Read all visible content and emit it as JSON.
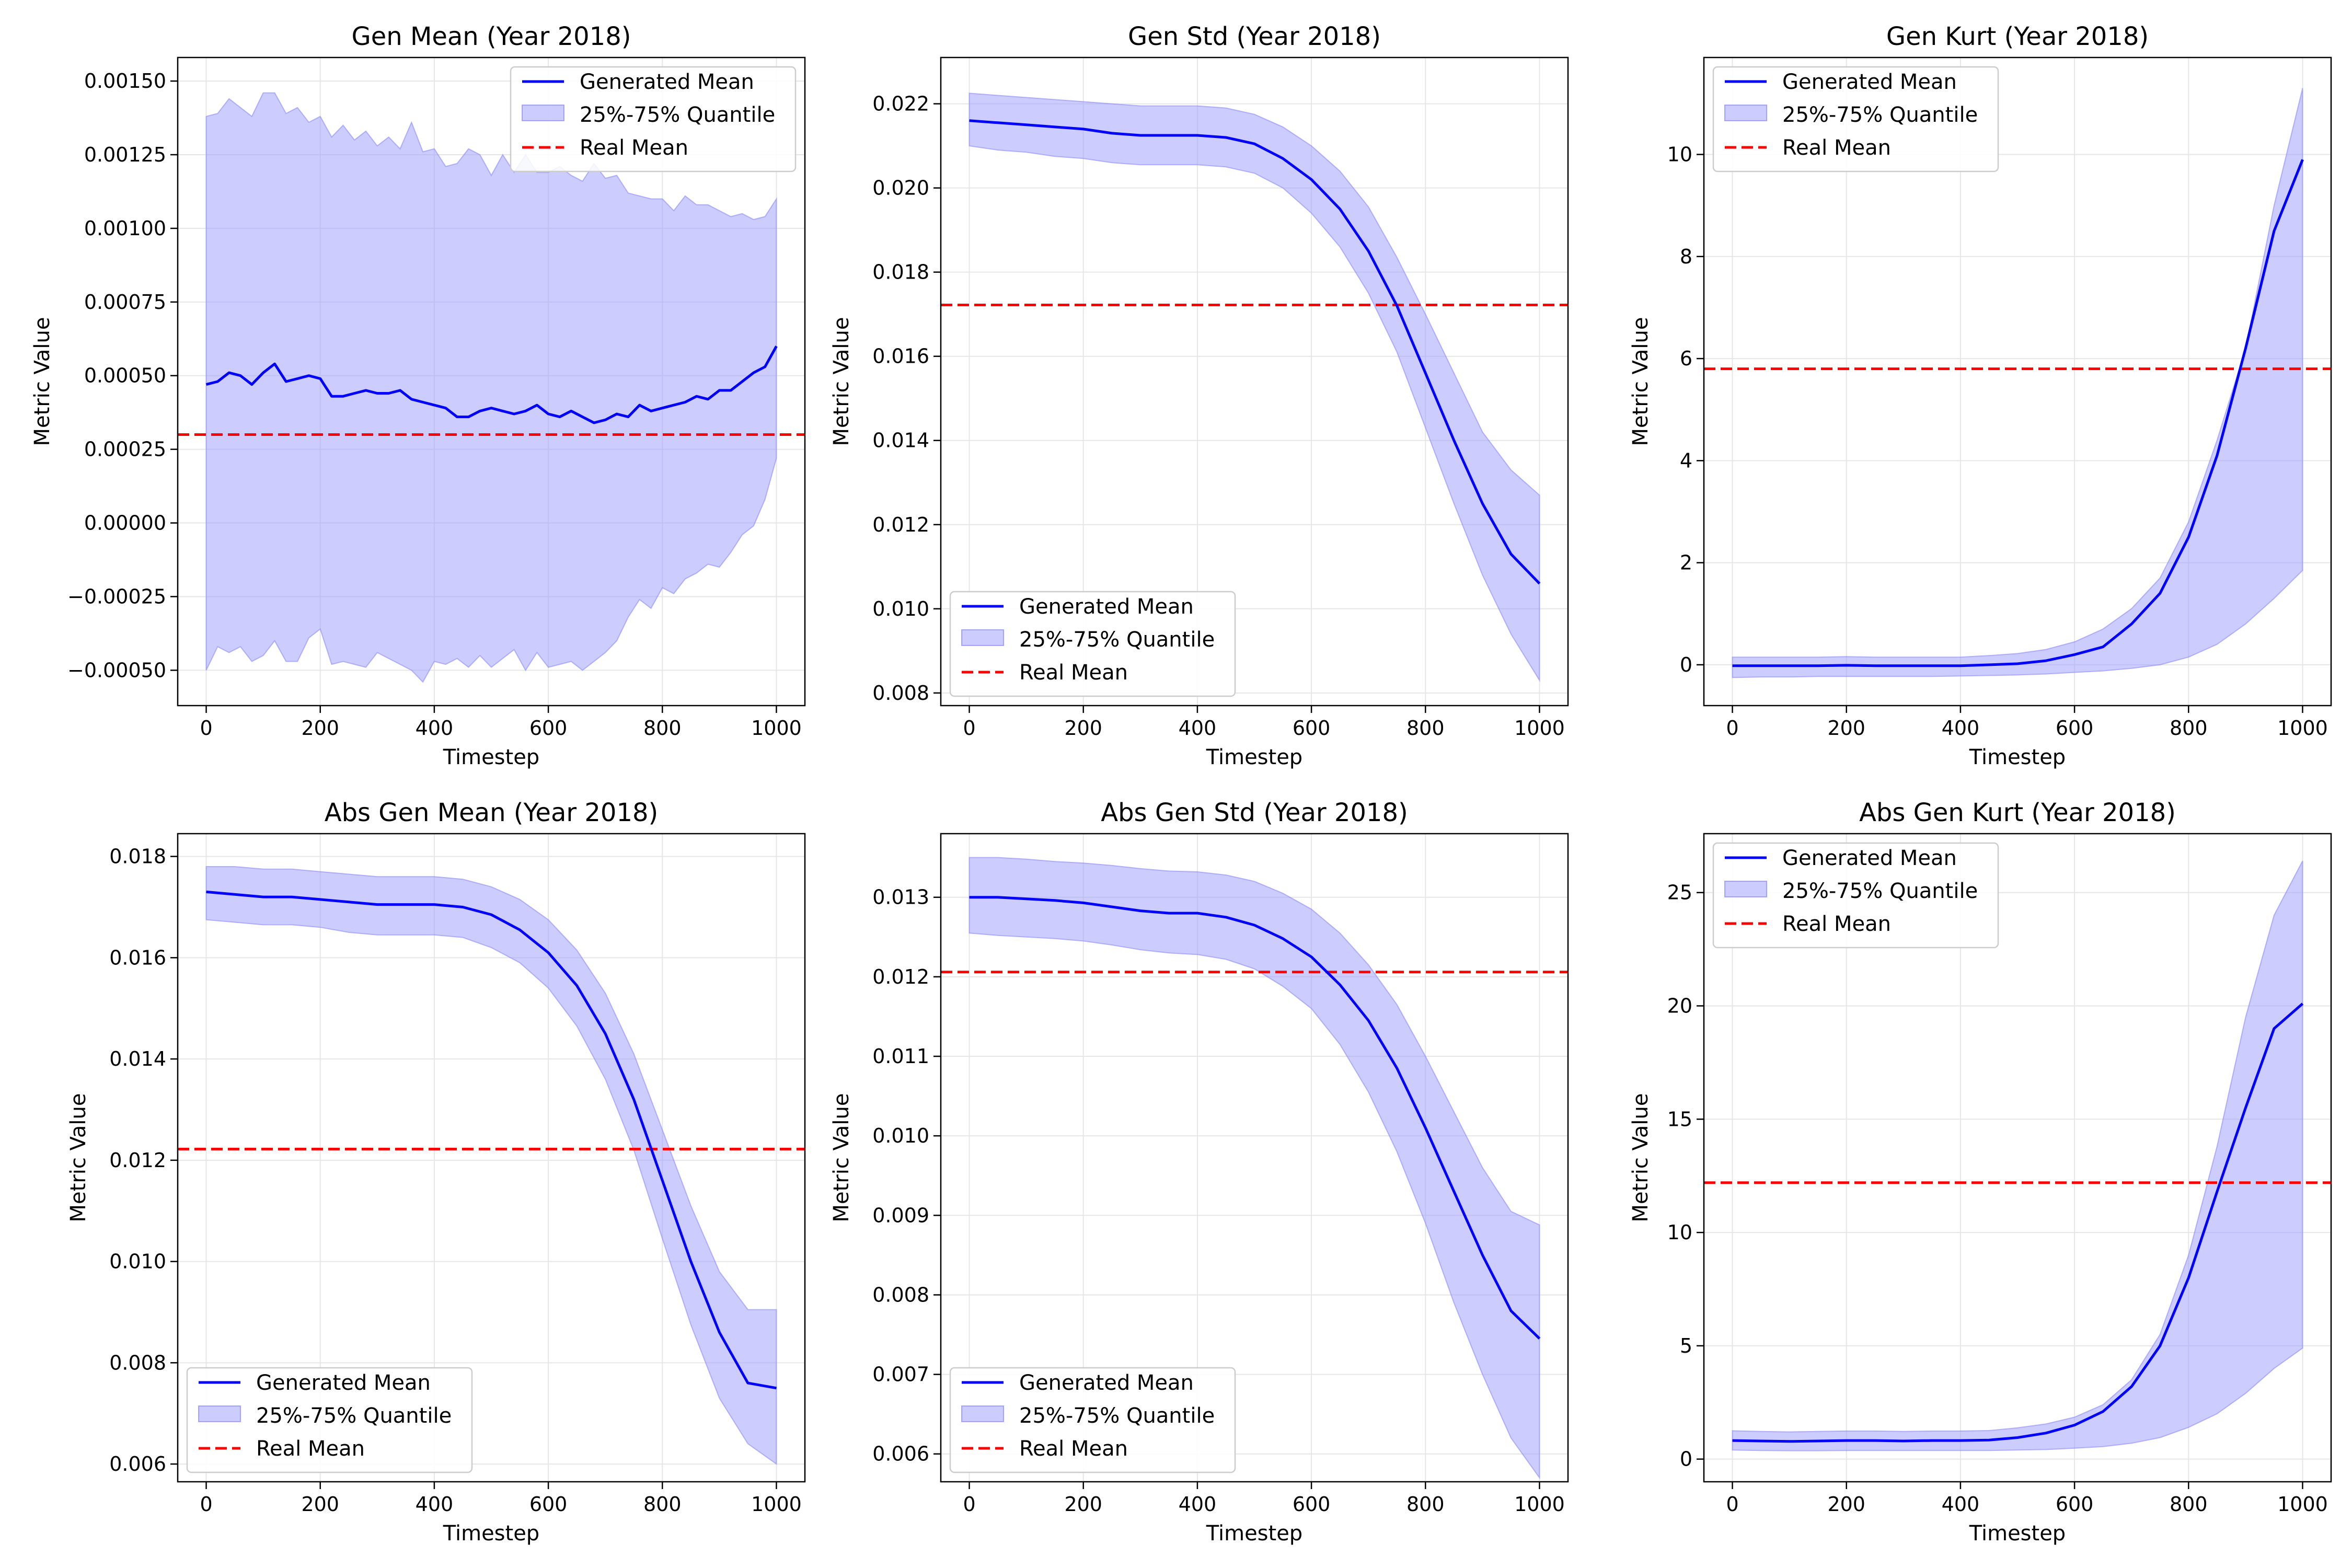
{
  "colors": {
    "mean_line": "#0000ff",
    "band_fill": "#9999ff",
    "band_edge": "#7777ff",
    "real_line": "#ff0000",
    "grid": "#e6e6e6"
  },
  "chart_data": [
    {
      "type": "line",
      "title": "Gen Mean (Year 2018)",
      "xlabel": "Timestep",
      "ylabel": "Metric Value",
      "xlim": [
        -50,
        1050
      ],
      "ylim": [
        -0.00062,
        0.00158
      ],
      "xticks": [
        0,
        200,
        400,
        600,
        800,
        1000
      ],
      "xtick_labels": [
        "0",
        "200",
        "400",
        "600",
        "800",
        "1000"
      ],
      "yticks": [
        -0.0005,
        -0.00025,
        0,
        0.00025,
        0.0005,
        0.00075,
        0.001,
        0.00125,
        0.0015
      ],
      "ytick_labels": [
        "−0.00050",
        "−0.00025",
        "0.00000",
        "0.00025",
        "0.00050",
        "0.00075",
        "0.00100",
        "0.00125",
        "0.00150"
      ],
      "grid": true,
      "legend_position": "upper-right",
      "legend": [
        "Generated Mean",
        "25%-75% Quantile",
        "Real Mean"
      ],
      "x": [
        0,
        20,
        40,
        60,
        80,
        100,
        120,
        140,
        160,
        180,
        200,
        220,
        240,
        260,
        280,
        300,
        320,
        340,
        360,
        380,
        400,
        420,
        440,
        460,
        480,
        500,
        520,
        540,
        560,
        580,
        600,
        620,
        640,
        660,
        680,
        700,
        720,
        740,
        760,
        780,
        800,
        820,
        840,
        860,
        880,
        900,
        920,
        940,
        960,
        980,
        1000
      ],
      "mean": [
        0.00047,
        0.00048,
        0.00051,
        0.0005,
        0.00047,
        0.00051,
        0.00054,
        0.00048,
        0.00049,
        0.0005,
        0.00049,
        0.00043,
        0.00043,
        0.00044,
        0.00045,
        0.00044,
        0.00044,
        0.00045,
        0.00042,
        0.00041,
        0.0004,
        0.00039,
        0.00036,
        0.00036,
        0.00038,
        0.00039,
        0.00038,
        0.00037,
        0.00038,
        0.0004,
        0.00037,
        0.00036,
        0.00038,
        0.00036,
        0.00034,
        0.00035,
        0.00037,
        0.00036,
        0.0004,
        0.00038,
        0.00039,
        0.0004,
        0.00041,
        0.00043,
        0.00042,
        0.00045,
        0.00045,
        0.00048,
        0.00051,
        0.00053,
        0.0006
      ],
      "q25": [
        -0.0005,
        -0.00042,
        -0.00044,
        -0.00042,
        -0.00047,
        -0.00045,
        -0.0004,
        -0.00047,
        -0.00047,
        -0.00039,
        -0.00036,
        -0.00048,
        -0.00047,
        -0.00048,
        -0.00049,
        -0.00044,
        -0.00046,
        -0.00048,
        -0.0005,
        -0.00054,
        -0.00047,
        -0.00048,
        -0.00046,
        -0.00049,
        -0.00045,
        -0.00049,
        -0.00046,
        -0.00043,
        -0.0005,
        -0.00044,
        -0.00049,
        -0.00048,
        -0.00047,
        -0.0005,
        -0.00047,
        -0.00044,
        -0.0004,
        -0.00032,
        -0.00026,
        -0.00029,
        -0.00022,
        -0.00024,
        -0.00019,
        -0.00017,
        -0.00014,
        -0.00015,
        -0.0001,
        -4e-05,
        -1e-05,
        8e-05,
        0.00022
      ],
      "q75": [
        0.00138,
        0.00139,
        0.00144,
        0.00141,
        0.00138,
        0.00146,
        0.00146,
        0.00139,
        0.00141,
        0.00136,
        0.00138,
        0.00131,
        0.00135,
        0.0013,
        0.00133,
        0.00128,
        0.00131,
        0.00127,
        0.00136,
        0.00126,
        0.00127,
        0.00121,
        0.00122,
        0.00127,
        0.00125,
        0.00118,
        0.00125,
        0.00119,
        0.00125,
        0.00119,
        0.00119,
        0.00121,
        0.00118,
        0.00116,
        0.00122,
        0.00117,
        0.00118,
        0.00112,
        0.00111,
        0.0011,
        0.0011,
        0.00106,
        0.00111,
        0.00108,
        0.00108,
        0.00106,
        0.00104,
        0.00105,
        0.00103,
        0.00104,
        0.0011
      ],
      "real_mean": 0.0003
    },
    {
      "type": "line",
      "title": "Gen Std (Year 2018)",
      "xlabel": "Timestep",
      "ylabel": "Metric Value",
      "xlim": [
        -50,
        1050
      ],
      "ylim": [
        0.0077,
        0.0231
      ],
      "xticks": [
        0,
        200,
        400,
        600,
        800,
        1000
      ],
      "xtick_labels": [
        "0",
        "200",
        "400",
        "600",
        "800",
        "1000"
      ],
      "yticks": [
        0.008,
        0.01,
        0.012,
        0.014,
        0.016,
        0.018,
        0.02,
        0.022
      ],
      "ytick_labels": [
        "0.008",
        "0.010",
        "0.012",
        "0.014",
        "0.016",
        "0.018",
        "0.020",
        "0.022"
      ],
      "grid": true,
      "legend_position": "lower-left",
      "legend": [
        "Generated Mean",
        "25%-75% Quantile",
        "Real Mean"
      ],
      "x": [
        0,
        50,
        100,
        150,
        200,
        250,
        300,
        350,
        400,
        450,
        500,
        550,
        600,
        650,
        700,
        750,
        800,
        850,
        900,
        950,
        1000
      ],
      "mean": [
        0.0216,
        0.02155,
        0.0215,
        0.02145,
        0.0214,
        0.0213,
        0.02125,
        0.02125,
        0.02125,
        0.0212,
        0.02105,
        0.0207,
        0.0202,
        0.0195,
        0.0185,
        0.0172,
        0.0156,
        0.014,
        0.0125,
        0.0113,
        0.0106
      ],
      "q25": [
        0.021,
        0.0209,
        0.02085,
        0.02075,
        0.0207,
        0.0206,
        0.02055,
        0.02055,
        0.02055,
        0.0205,
        0.02035,
        0.02,
        0.0194,
        0.0186,
        0.0175,
        0.0161,
        0.0143,
        0.0125,
        0.0108,
        0.0094,
        0.0083
      ],
      "q75": [
        0.02225,
        0.0222,
        0.02215,
        0.0221,
        0.02205,
        0.022,
        0.02195,
        0.02195,
        0.02195,
        0.0219,
        0.02175,
        0.02145,
        0.021,
        0.0204,
        0.01955,
        0.01835,
        0.017,
        0.0156,
        0.0142,
        0.0133,
        0.0127
      ],
      "real_mean": 0.01722
    },
    {
      "type": "line",
      "title": "Gen Kurt (Year 2018)",
      "xlabel": "Timestep",
      "ylabel": "Metric Value",
      "xlim": [
        -50,
        1050
      ],
      "ylim": [
        -0.8,
        11.9
      ],
      "xticks": [
        0,
        200,
        400,
        600,
        800,
        1000
      ],
      "xtick_labels": [
        "0",
        "200",
        "400",
        "600",
        "800",
        "1000"
      ],
      "yticks": [
        0,
        2,
        4,
        6,
        8,
        10
      ],
      "ytick_labels": [
        "0",
        "2",
        "4",
        "6",
        "8",
        "10"
      ],
      "grid": true,
      "legend_position": "upper-left",
      "legend": [
        "Generated Mean",
        "25%-75% Quantile",
        "Real Mean"
      ],
      "x": [
        0,
        50,
        100,
        150,
        200,
        250,
        300,
        350,
        400,
        450,
        500,
        550,
        600,
        650,
        700,
        750,
        800,
        850,
        900,
        950,
        1000
      ],
      "mean": [
        -0.02,
        -0.02,
        -0.02,
        -0.02,
        -0.01,
        -0.02,
        -0.02,
        -0.02,
        -0.02,
        0.0,
        0.02,
        0.08,
        0.2,
        0.35,
        0.8,
        1.4,
        2.5,
        4.1,
        6.2,
        8.5,
        9.9
      ],
      "q25": [
        -0.25,
        -0.24,
        -0.24,
        -0.23,
        -0.23,
        -0.23,
        -0.23,
        -0.23,
        -0.22,
        -0.21,
        -0.2,
        -0.18,
        -0.15,
        -0.12,
        -0.07,
        0.0,
        0.15,
        0.4,
        0.8,
        1.3,
        1.85
      ],
      "q75": [
        0.15,
        0.15,
        0.15,
        0.15,
        0.16,
        0.15,
        0.15,
        0.15,
        0.15,
        0.18,
        0.22,
        0.3,
        0.45,
        0.7,
        1.1,
        1.7,
        2.8,
        4.4,
        6.2,
        9.0,
        11.3
      ],
      "real_mean": 5.8
    },
    {
      "type": "line",
      "title": "Abs Gen Mean (Year 2018)",
      "xlabel": "Timestep",
      "ylabel": "Metric Value",
      "xlim": [
        -50,
        1050
      ],
      "ylim": [
        0.00565,
        0.01845
      ],
      "xticks": [
        0,
        200,
        400,
        600,
        800,
        1000
      ],
      "xtick_labels": [
        "0",
        "200",
        "400",
        "600",
        "800",
        "1000"
      ],
      "yticks": [
        0.006,
        0.008,
        0.01,
        0.012,
        0.014,
        0.016,
        0.018
      ],
      "ytick_labels": [
        "0.006",
        "0.008",
        "0.010",
        "0.012",
        "0.014",
        "0.016",
        "0.018"
      ],
      "grid": true,
      "legend_position": "lower-left",
      "legend": [
        "Generated Mean",
        "25%-75% Quantile",
        "Real Mean"
      ],
      "x": [
        0,
        50,
        100,
        150,
        200,
        250,
        300,
        350,
        400,
        450,
        500,
        550,
        600,
        650,
        700,
        750,
        800,
        850,
        900,
        950,
        1000
      ],
      "mean": [
        0.0173,
        0.01725,
        0.0172,
        0.0172,
        0.01715,
        0.0171,
        0.01705,
        0.01705,
        0.01705,
        0.017,
        0.01685,
        0.01655,
        0.0161,
        0.01545,
        0.0145,
        0.0132,
        0.0116,
        0.01,
        0.0086,
        0.0076,
        0.0075
      ],
      "q25": [
        0.01675,
        0.0167,
        0.01665,
        0.01665,
        0.0166,
        0.0165,
        0.01645,
        0.01645,
        0.01645,
        0.0164,
        0.0162,
        0.0159,
        0.0154,
        0.01465,
        0.0136,
        0.0122,
        0.01045,
        0.00875,
        0.0073,
        0.0064,
        0.006
      ],
      "q75": [
        0.0178,
        0.0178,
        0.01775,
        0.01775,
        0.0177,
        0.01765,
        0.0176,
        0.0176,
        0.0176,
        0.01755,
        0.0174,
        0.01715,
        0.01675,
        0.01615,
        0.0153,
        0.0141,
        0.0126,
        0.0111,
        0.0098,
        0.00905,
        0.00905
      ],
      "real_mean": 0.01222
    },
    {
      "type": "line",
      "title": "Abs Gen Std (Year 2018)",
      "xlabel": "Timestep",
      "ylabel": "Metric Value",
      "xlim": [
        -50,
        1050
      ],
      "ylim": [
        0.00565,
        0.0138
      ],
      "xticks": [
        0,
        200,
        400,
        600,
        800,
        1000
      ],
      "xtick_labels": [
        "0",
        "200",
        "400",
        "600",
        "800",
        "1000"
      ],
      "yticks": [
        0.006,
        0.007,
        0.008,
        0.009,
        0.01,
        0.011,
        0.012,
        0.013
      ],
      "ytick_labels": [
        "0.006",
        "0.007",
        "0.008",
        "0.009",
        "0.010",
        "0.011",
        "0.012",
        "0.013"
      ],
      "grid": true,
      "legend_position": "lower-left",
      "legend": [
        "Generated Mean",
        "25%-75% Quantile",
        "Real Mean"
      ],
      "x": [
        0,
        50,
        100,
        150,
        200,
        250,
        300,
        350,
        400,
        450,
        500,
        550,
        600,
        650,
        700,
        750,
        800,
        850,
        900,
        950,
        1000
      ],
      "mean": [
        0.013,
        0.013,
        0.01298,
        0.01296,
        0.01293,
        0.01288,
        0.01283,
        0.0128,
        0.0128,
        0.01275,
        0.01265,
        0.01248,
        0.01225,
        0.0119,
        0.01145,
        0.01085,
        0.0101,
        0.0093,
        0.0085,
        0.0078,
        0.00745
      ],
      "q25": [
        0.01255,
        0.01252,
        0.0125,
        0.01248,
        0.01245,
        0.0124,
        0.01234,
        0.0123,
        0.01228,
        0.01222,
        0.0121,
        0.01188,
        0.0116,
        0.01115,
        0.01055,
        0.0098,
        0.0089,
        0.0079,
        0.007,
        0.0062,
        0.0057
      ],
      "q75": [
        0.0135,
        0.0135,
        0.01348,
        0.01345,
        0.01343,
        0.0134,
        0.01336,
        0.01333,
        0.01332,
        0.01328,
        0.0132,
        0.01305,
        0.01285,
        0.01255,
        0.01215,
        0.01165,
        0.011,
        0.0103,
        0.0096,
        0.00905,
        0.00888
      ],
      "real_mean": 0.01206
    },
    {
      "type": "line",
      "title": "Abs Gen Kurt (Year 2018)",
      "xlabel": "Timestep",
      "ylabel": "Metric Value",
      "xlim": [
        -50,
        1050
      ],
      "ylim": [
        -1.0,
        27.6
      ],
      "xticks": [
        0,
        200,
        400,
        600,
        800,
        1000
      ],
      "xtick_labels": [
        "0",
        "200",
        "400",
        "600",
        "800",
        "1000"
      ],
      "yticks": [
        0,
        5,
        10,
        15,
        20,
        25
      ],
      "ytick_labels": [
        "0",
        "5",
        "10",
        "15",
        "20",
        "25"
      ],
      "grid": true,
      "legend_position": "upper-left",
      "legend": [
        "Generated Mean",
        "25%-75% Quantile",
        "Real Mean"
      ],
      "x": [
        0,
        50,
        100,
        150,
        200,
        250,
        300,
        350,
        400,
        450,
        500,
        550,
        600,
        650,
        700,
        750,
        800,
        850,
        900,
        950,
        1000
      ],
      "mean": [
        0.82,
        0.8,
        0.78,
        0.8,
        0.82,
        0.82,
        0.8,
        0.82,
        0.82,
        0.84,
        0.95,
        1.15,
        1.5,
        2.1,
        3.2,
        5.0,
        8.0,
        11.8,
        15.5,
        19.0,
        20.1
      ],
      "q25": [
        0.4,
        0.38,
        0.37,
        0.37,
        0.38,
        0.38,
        0.38,
        0.38,
        0.38,
        0.38,
        0.4,
        0.42,
        0.48,
        0.55,
        0.7,
        0.95,
        1.4,
        2.0,
        2.9,
        4.0,
        4.9
      ],
      "q75": [
        1.25,
        1.22,
        1.2,
        1.22,
        1.24,
        1.24,
        1.22,
        1.24,
        1.24,
        1.26,
        1.38,
        1.55,
        1.85,
        2.4,
        3.5,
        5.5,
        9.0,
        13.8,
        19.5,
        24.0,
        26.4
      ],
      "real_mean": 12.2
    }
  ]
}
